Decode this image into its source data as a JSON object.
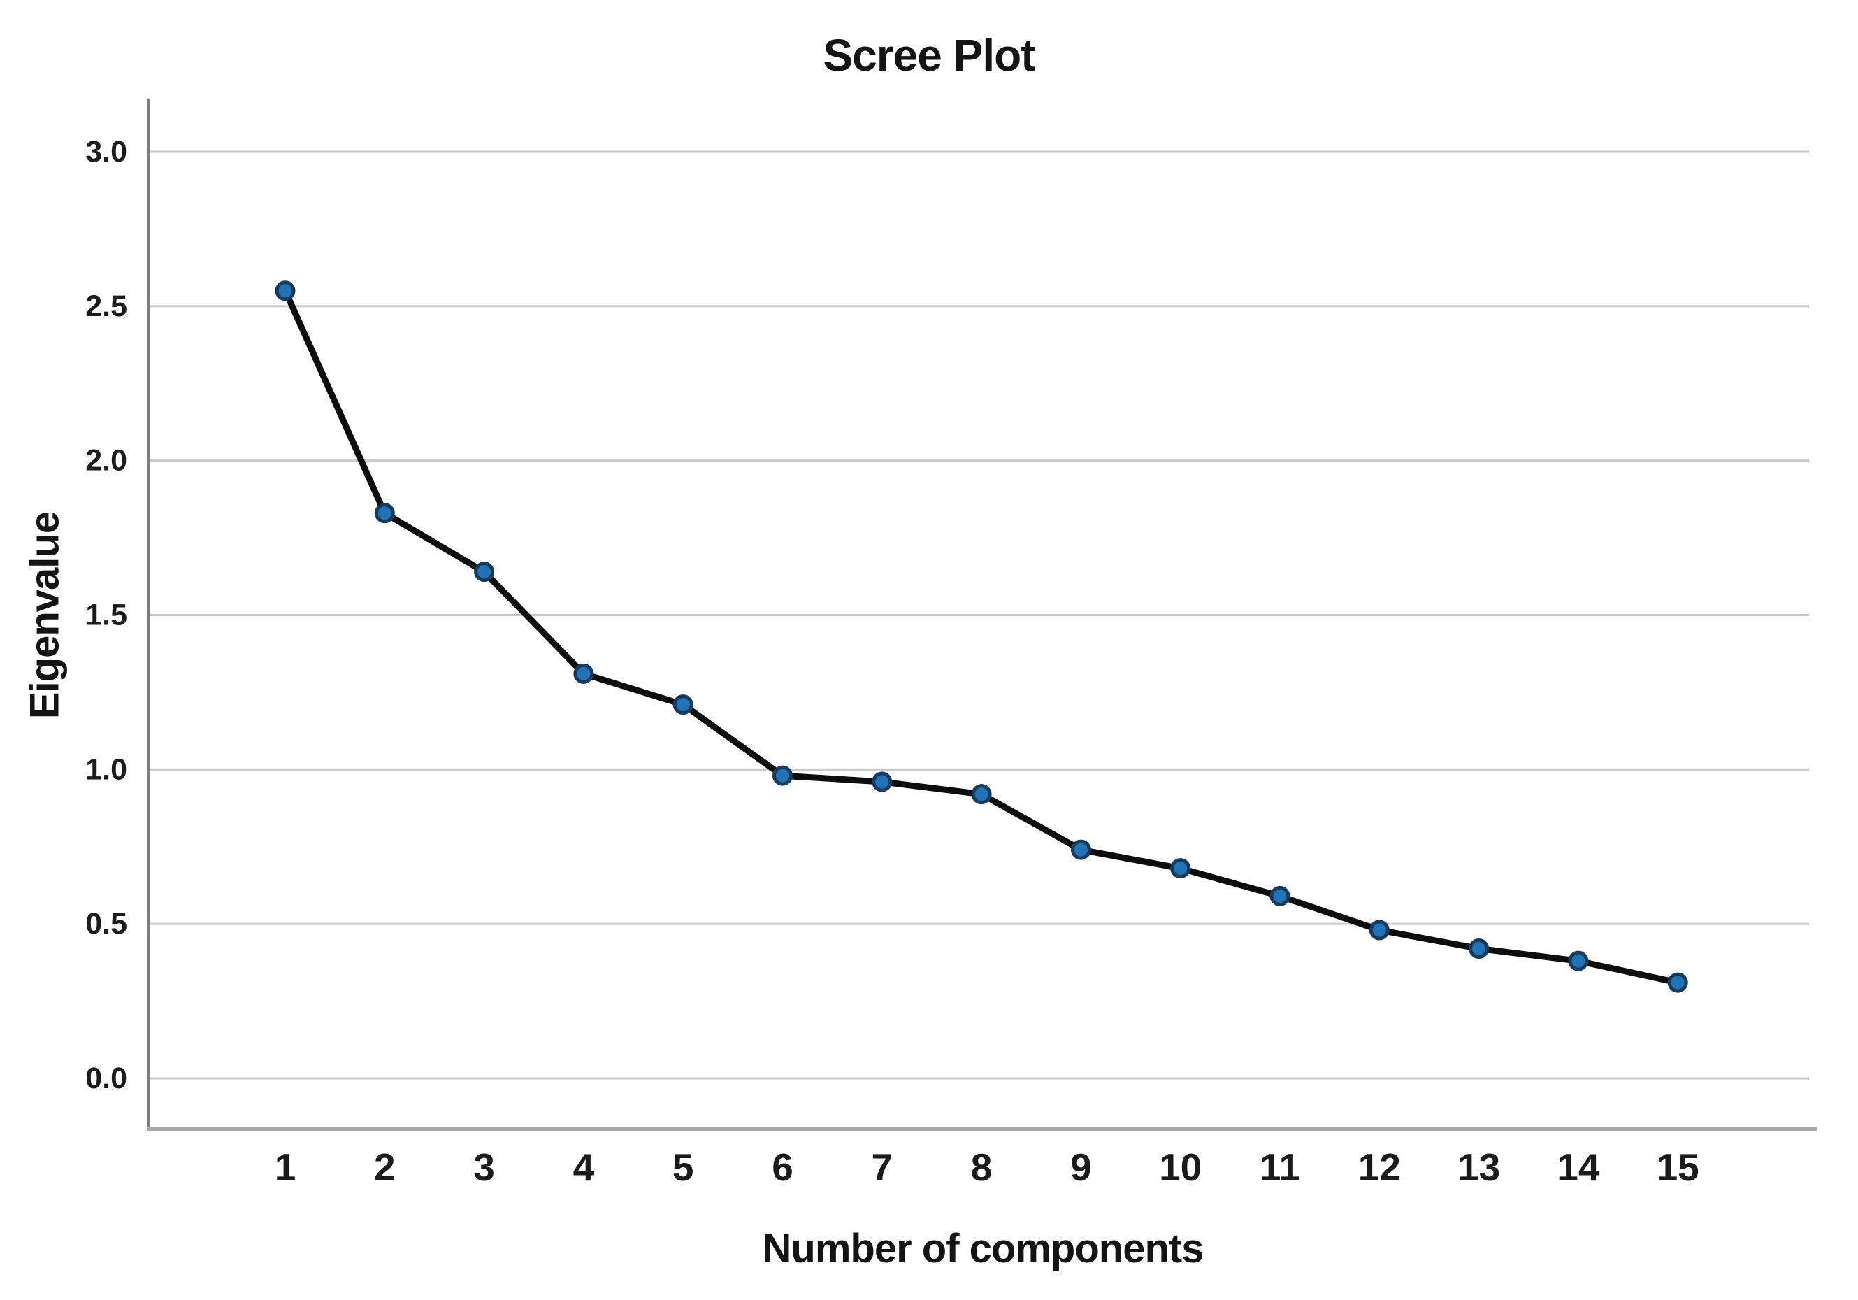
{
  "figure": {
    "background": "#ffffff"
  },
  "chart_data": {
    "type": "line",
    "title": "Scree Plot",
    "xlabel": "Number of components",
    "ylabel": "Eigenvalue",
    "categories": [
      "1",
      "2",
      "3",
      "4",
      "5",
      "6",
      "7",
      "8",
      "9",
      "10",
      "11",
      "12",
      "13",
      "14",
      "15"
    ],
    "series": [
      {
        "name": "Eigenvalue",
        "values": [
          2.55,
          1.83,
          1.64,
          1.31,
          1.21,
          0.98,
          0.96,
          0.92,
          0.74,
          0.68,
          0.59,
          0.48,
          0.42,
          0.38,
          0.31
        ]
      }
    ],
    "ylim": [
      0.0,
      3.0
    ],
    "ytick_labels": [
      "3.0",
      "2.5",
      "2.0",
      "1.5",
      "1.0",
      "0.5",
      "0.0"
    ],
    "grid": "horizontal",
    "legend_position": "none",
    "marker": "filled-circle",
    "colors": {
      "line": "#0d0d0d",
      "marker_fill": "#2173b6",
      "marker_stroke": "#173a5e",
      "gridline": "#c9c9c9",
      "y_axis_line": "#7d7d7d",
      "x_axis_line": "#a6a6a6",
      "text": "#1b1b1b"
    }
  }
}
